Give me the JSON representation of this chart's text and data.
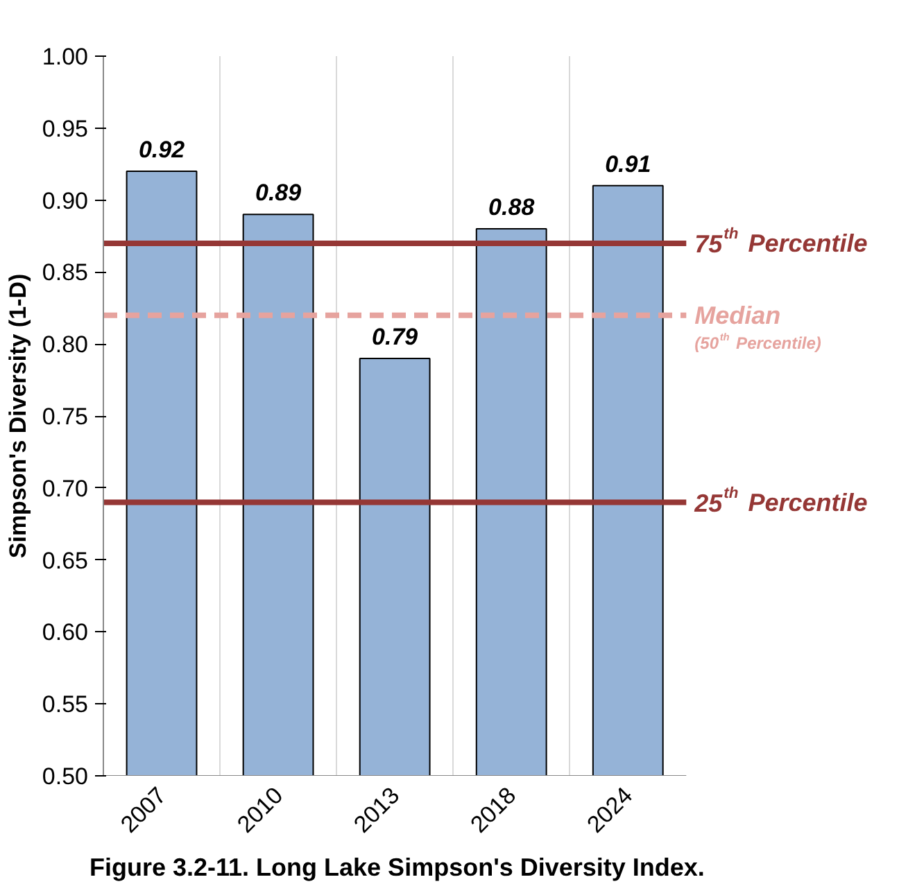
{
  "chart_data": {
    "type": "bar",
    "ylabel": "Simpson's Diversity (1-D)",
    "categories": [
      "2007",
      "2010",
      "2013",
      "2018",
      "2024"
    ],
    "values": [
      0.92,
      0.89,
      0.79,
      0.88,
      0.91
    ],
    "color": "#95b3d7",
    "data_labels": true,
    "ylim": [
      0.5,
      1.0
    ],
    "yticks": [
      {
        "value": 0.5,
        "label": "0.50"
      },
      {
        "value": 0.55,
        "label": "0.55"
      },
      {
        "value": 0.6,
        "label": "0.60"
      },
      {
        "value": 0.65,
        "label": "0.65"
      },
      {
        "value": 0.7,
        "label": "0.70"
      },
      {
        "value": 0.75,
        "label": "0.75"
      },
      {
        "value": 0.8,
        "label": "0.80"
      },
      {
        "value": 0.85,
        "label": "0.85"
      },
      {
        "value": 0.9,
        "label": "0.90"
      },
      {
        "value": 0.95,
        "label": "0.95"
      },
      {
        "value": 1.0,
        "label": "1.00"
      }
    ],
    "grid": "x",
    "ref_lines": [
      {
        "axis": "y",
        "value": 0.87,
        "label": "75$^{th}$ Percentile",
        "color": "#953735",
        "line_style": "solid"
      },
      {
        "axis": "y",
        "value": 0.82,
        "label": "Median\n(50$^{th}$ Percentile)",
        "color": "#e6a39e",
        "line_style": "dashed"
      },
      {
        "axis": "y",
        "value": 0.69,
        "label": "25$^{th}$ Percentile",
        "color": "#953735",
        "line_style": "solid"
      }
    ],
    "annotations": [
      "Figure 3.2-11.  Long Lake Simpson's Diversity Index."
    ]
  }
}
